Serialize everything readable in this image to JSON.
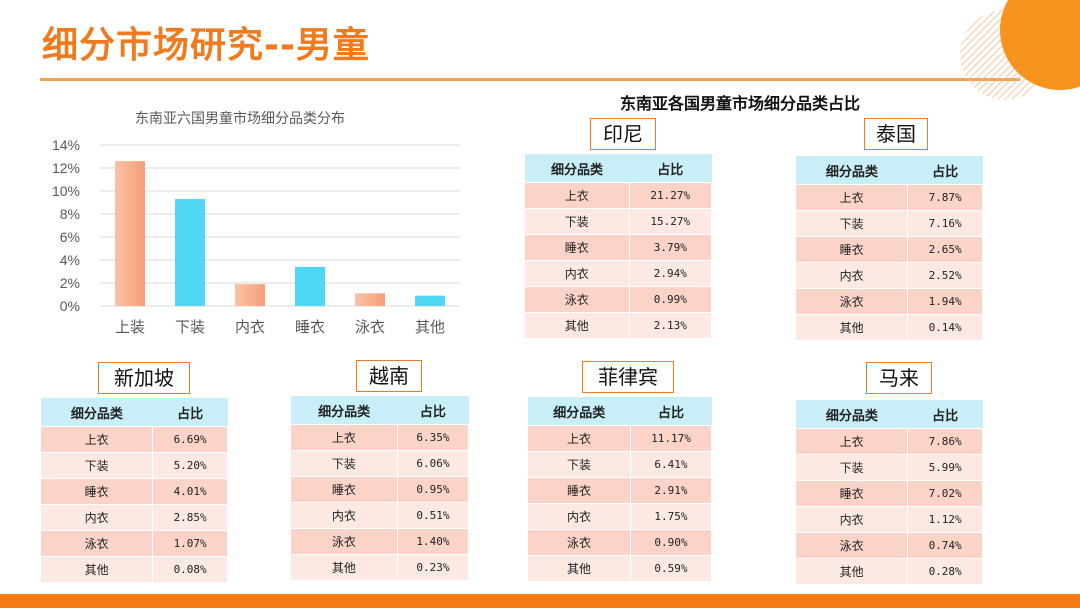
{
  "page": {
    "title": "细分市场研究--男童",
    "right_heading": "东南亚各国男童市场细分品类占比"
  },
  "colors": {
    "accent": "#f07a1e",
    "bar_orange": "#f8a88a",
    "bar_cyan": "#4fd8f4",
    "header_bg": "#c8eef8",
    "row_dark": "#fbd3c8",
    "row_light": "#fde9e3"
  },
  "chart_data": {
    "type": "bar",
    "title": "东南亚六国男童市场细分品类分布",
    "categories": [
      "上装",
      "下装",
      "内衣",
      "睡衣",
      "泳衣",
      "其他"
    ],
    "values": [
      12.6,
      9.3,
      1.9,
      3.4,
      1.1,
      0.9
    ],
    "ylim": [
      0,
      14
    ],
    "yticks": [
      "0%",
      "2%",
      "4%",
      "6%",
      "8%",
      "10%",
      "12%",
      "14%"
    ],
    "grid": true
  },
  "tables": {
    "header_cat": "细分品类",
    "header_share": "占比",
    "india": {
      "name": "印尼",
      "rows": [
        {
          "cat": "上衣",
          "val": "21.27%"
        },
        {
          "cat": "下装",
          "val": "15.27%"
        },
        {
          "cat": "睡衣",
          "val": "3.79%"
        },
        {
          "cat": "内衣",
          "val": "2.94%"
        },
        {
          "cat": "泳衣",
          "val": "0.99%"
        },
        {
          "cat": "其他",
          "val": "2.13%"
        }
      ]
    },
    "thailand": {
      "name": "泰国",
      "rows": [
        {
          "cat": "上衣",
          "val": "7.87%"
        },
        {
          "cat": "下装",
          "val": "7.16%"
        },
        {
          "cat": "睡衣",
          "val": "2.65%"
        },
        {
          "cat": "内衣",
          "val": "2.52%"
        },
        {
          "cat": "泳衣",
          "val": "1.94%"
        },
        {
          "cat": "其他",
          "val": "0.14%"
        }
      ]
    },
    "singapore": {
      "name": "新加坡",
      "rows": [
        {
          "cat": "上衣",
          "val": "6.69%"
        },
        {
          "cat": "下装",
          "val": "5.20%"
        },
        {
          "cat": "睡衣",
          "val": "4.01%"
        },
        {
          "cat": "内衣",
          "val": "2.85%"
        },
        {
          "cat": "泳衣",
          "val": "1.07%"
        },
        {
          "cat": "其他",
          "val": "0.08%"
        }
      ]
    },
    "vietnam": {
      "name": "越南",
      "rows": [
        {
          "cat": "上衣",
          "val": "6.35%"
        },
        {
          "cat": "下装",
          "val": "6.06%"
        },
        {
          "cat": "睡衣",
          "val": "0.95%"
        },
        {
          "cat": "内衣",
          "val": "0.51%"
        },
        {
          "cat": "泳衣",
          "val": "1.40%"
        },
        {
          "cat": "其他",
          "val": "0.23%"
        }
      ]
    },
    "philippines": {
      "name": "菲律宾",
      "rows": [
        {
          "cat": "上衣",
          "val": "11.17%"
        },
        {
          "cat": "下装",
          "val": "6.41%"
        },
        {
          "cat": "睡衣",
          "val": "2.91%"
        },
        {
          "cat": "内衣",
          "val": "1.75%"
        },
        {
          "cat": "泳衣",
          "val": "0.90%"
        },
        {
          "cat": "其他",
          "val": "0.59%"
        }
      ]
    },
    "malaysia": {
      "name": "马来",
      "rows": [
        {
          "cat": "上衣",
          "val": "7.86%"
        },
        {
          "cat": "下装",
          "val": "5.99%"
        },
        {
          "cat": "睡衣",
          "val": "7.02%"
        },
        {
          "cat": "内衣",
          "val": "1.12%"
        },
        {
          "cat": "泳衣",
          "val": "0.74%"
        },
        {
          "cat": "其他",
          "val": "0.28%"
        }
      ]
    }
  }
}
